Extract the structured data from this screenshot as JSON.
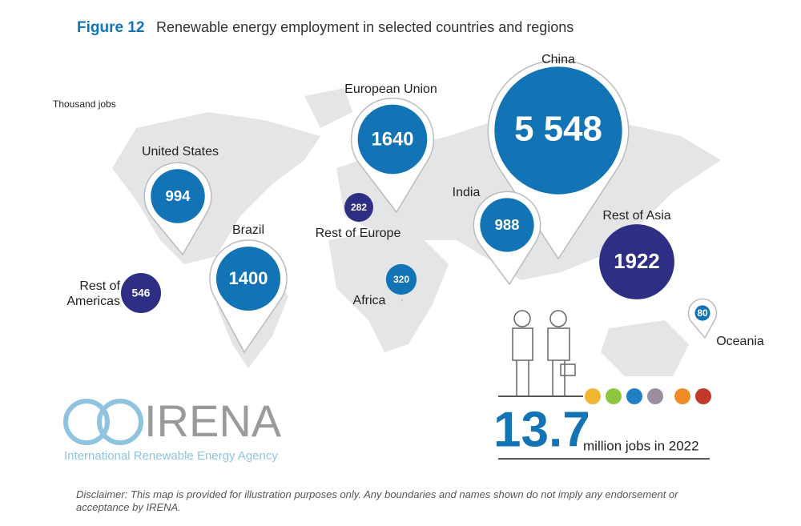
{
  "header": {
    "figure": "Figure 12",
    "title": "Renewable energy employment in selected countries and regions"
  },
  "unit": "Thousand jobs",
  "regions": [
    {
      "name": [
        "China"
      ],
      "value": 5548,
      "value_label": "5 548",
      "color": "#1273b5"
    },
    {
      "name": [
        "European Union"
      ],
      "value": 1640,
      "color": "#1273b5"
    },
    {
      "name": [
        "United States"
      ],
      "value": 994,
      "color": "#1273b5"
    },
    {
      "name": [
        "Brazil"
      ],
      "value": 1400,
      "color": "#1273b5"
    },
    {
      "name": [
        "India"
      ],
      "value": 988,
      "color": "#1273b5"
    },
    {
      "name": [
        "Rest of Asia"
      ],
      "value": 1922,
      "color": "#2e2e85"
    },
    {
      "name": [
        "Rest of Europe"
      ],
      "value": 282,
      "color": "#2e2e85"
    },
    {
      "name": [
        "Africa"
      ],
      "value": 320,
      "color": "#1273b5"
    },
    {
      "name": [
        "Rest of",
        "Americas"
      ],
      "value": 546,
      "color": "#2e2e85"
    },
    {
      "name": [
        "Oceania"
      ],
      "value": 80,
      "color": "#1273b5"
    }
  ],
  "total": {
    "value": "13.7",
    "label": "million jobs in 2022"
  },
  "logo": {
    "name": "IRENA",
    "tagline": "International Renewable Energy Agency"
  },
  "disclaimer": "Disclaimer: This map is provided for illustration purposes only. Any boundaries and names shown do not imply any endorsement or acceptance by IRENA."
}
